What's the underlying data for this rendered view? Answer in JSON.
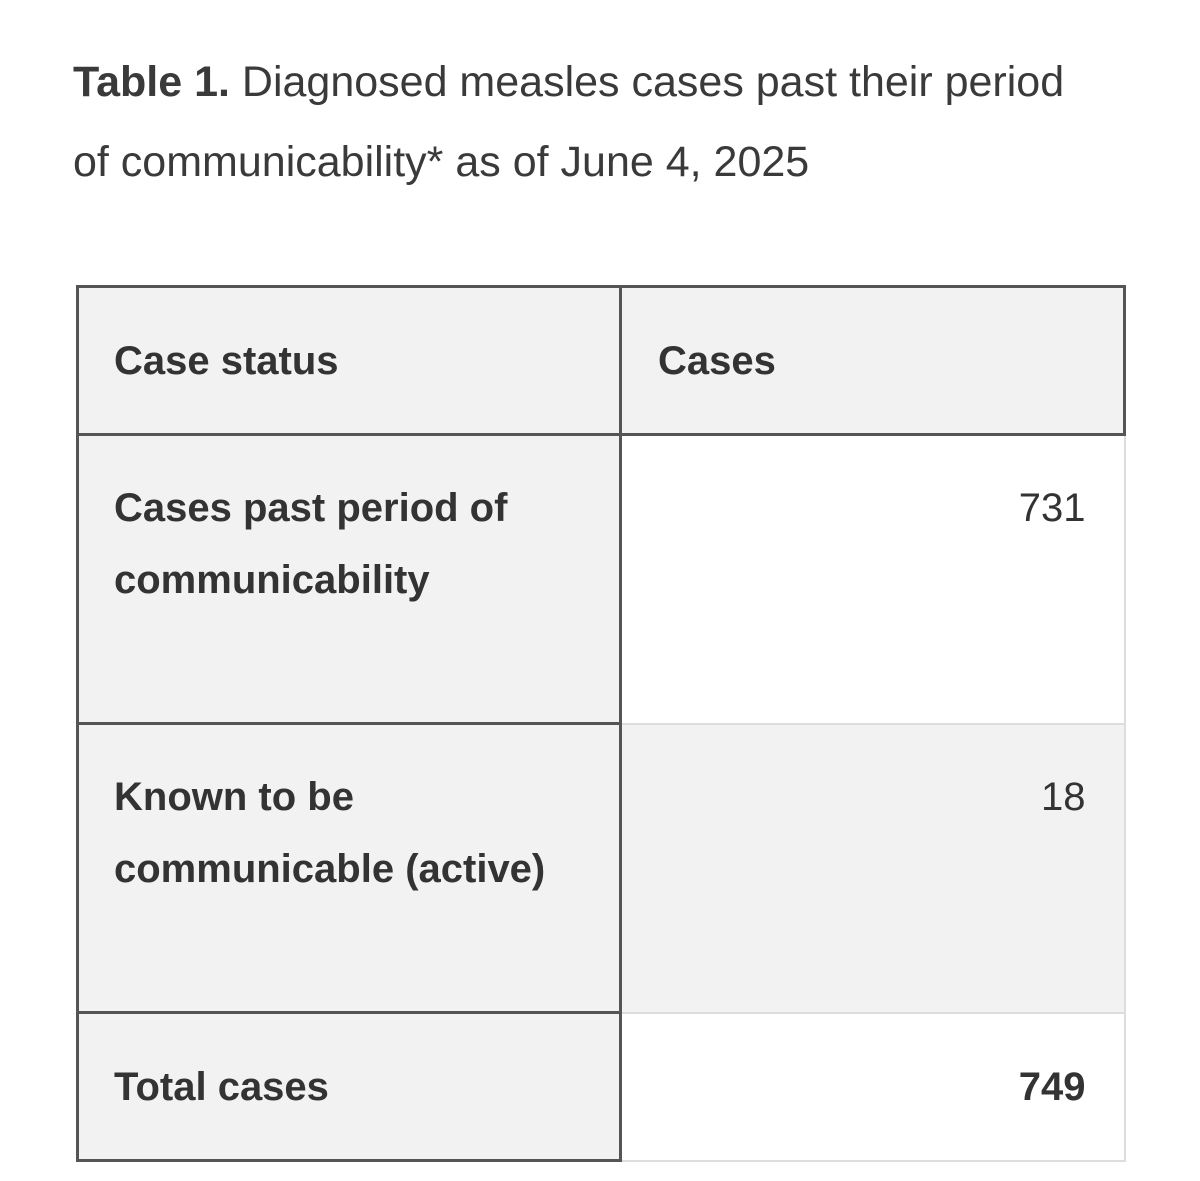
{
  "caption": {
    "label": "Table 1.",
    "text": "Diagnosed measles cases past their period of communicability* as of June 4, 2025"
  },
  "table": {
    "header": [
      "Case status",
      "Cases"
    ],
    "rows": [
      [
        "Cases past period of communicability",
        731
      ],
      [
        "Known to be communicable (active)",
        18
      ]
    ],
    "total": [
      "Total cases",
      749
    ]
  }
}
